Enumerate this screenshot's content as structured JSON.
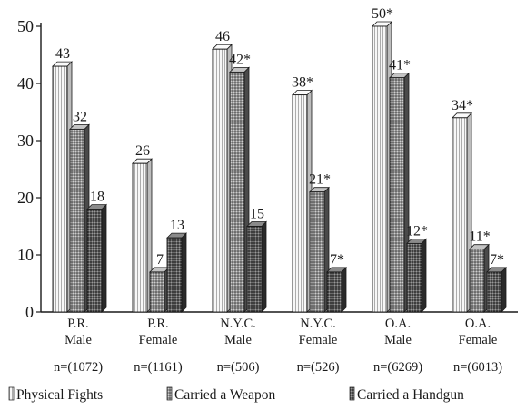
{
  "chart_data": {
    "type": "bar",
    "title": "",
    "xlabel": "",
    "ylabel": "",
    "ylim": [
      0,
      50
    ],
    "yticks": [
      0,
      10,
      20,
      30,
      40,
      50
    ],
    "grid": false,
    "legend_position": "bottom",
    "categories": [
      {
        "lines": [
          "P.R.",
          "Male"
        ],
        "n": "n=(1072)"
      },
      {
        "lines": [
          "P.R.",
          "Female"
        ],
        "n": "n=(1161)"
      },
      {
        "lines": [
          "N.Y.C.",
          "Male"
        ],
        "n": "n=(506)"
      },
      {
        "lines": [
          "N.Y.C.",
          "Female"
        ],
        "n": "n=(526)"
      },
      {
        "lines": [
          "O.A.",
          "Male"
        ],
        "n": "n=(6269)"
      },
      {
        "lines": [
          "O.A.",
          "Female"
        ],
        "n": "n=(6013)"
      }
    ],
    "series": [
      {
        "name": "Physical Fights",
        "values": [
          43,
          26,
          46,
          38,
          50,
          34
        ],
        "labels": [
          "43",
          "26",
          "46",
          "38*",
          "50*",
          "34*"
        ],
        "color": "#f2f2f2",
        "pattern": "vertical-stripes"
      },
      {
        "name": "Carried a Weapon",
        "values": [
          32,
          7,
          42,
          21,
          41,
          11
        ],
        "labels": [
          "32",
          "7",
          "42*",
          "21*",
          "41*",
          "11*"
        ],
        "color": "#8c8c8c",
        "pattern": "dots"
      },
      {
        "name": "Carried a Handgun",
        "values": [
          18,
          13,
          15,
          7,
          12,
          7
        ],
        "labels": [
          "18",
          "13",
          "15",
          "7*",
          "12*",
          "7*"
        ],
        "color": "#5a5a5a",
        "pattern": "dark-dots"
      }
    ]
  }
}
